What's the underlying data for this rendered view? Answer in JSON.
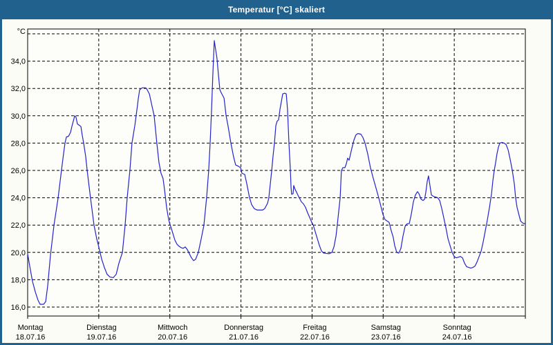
{
  "window": {
    "title": "Temperatur [°C] skaliert"
  },
  "colors": {
    "titlebar": "#20618e",
    "frame": "#20618e",
    "background": "#fbfcf5",
    "plot_background": "#fdfdfa",
    "grid": "#000000",
    "line": "#2222cc"
  },
  "chart_data": {
    "type": "line",
    "title": "Temperatur [°C] skaliert",
    "ylabel": "°C",
    "xlabel": "",
    "grid": "dashed",
    "legend": "none",
    "ylim": [
      15.3,
      36.4
    ],
    "x_range_hours": [
      0,
      168
    ],
    "y_axis": {
      "unit": "°C",
      "tick_labels": [
        "34,0",
        "32,0",
        "30,0",
        "28,0",
        "26,0",
        "24,0",
        "22,0",
        "20,0",
        "18,0",
        "16,0"
      ],
      "tick_values": [
        34,
        32,
        30,
        28,
        26,
        24,
        22,
        20,
        18,
        16
      ],
      "grid_values": [
        16,
        18,
        20,
        22,
        24,
        26,
        28,
        30,
        32,
        34,
        36
      ]
    },
    "x_axis": {
      "days": [
        {
          "name": "Montag",
          "date": "18.07.16"
        },
        {
          "name": "Dienstag",
          "date": "19.07.16"
        },
        {
          "name": "Mittwoch",
          "date": "20.07.16"
        },
        {
          "name": "Donnerstag",
          "date": "21.07.16"
        },
        {
          "name": "Freitag",
          "date": "22.07.16"
        },
        {
          "name": "Samstag",
          "date": "23.07.16"
        },
        {
          "name": "Sonntag",
          "date": "24.07.16"
        }
      ]
    },
    "series": [
      {
        "name": "Temperatur",
        "color": "#2222cc",
        "points_format": [
          "hours_since_monday_00",
          "temp_celsius"
        ],
        "points": [
          [
            0.0,
            19.9
          ],
          [
            0.7,
            19.0
          ],
          [
            1.6,
            17.9
          ],
          [
            2.6,
            17.1
          ],
          [
            3.5,
            16.5
          ],
          [
            4.2,
            16.2
          ],
          [
            5.4,
            16.2
          ],
          [
            6.1,
            16.4
          ],
          [
            6.8,
            17.6
          ],
          [
            7.7,
            19.8
          ],
          [
            8.9,
            22.0
          ],
          [
            10.3,
            24.0
          ],
          [
            11.4,
            26.0
          ],
          [
            12.1,
            27.2
          ],
          [
            12.6,
            28.0
          ],
          [
            13.1,
            28.45
          ],
          [
            13.8,
            28.5
          ],
          [
            14.5,
            28.8
          ],
          [
            14.9,
            29.2
          ],
          [
            15.4,
            29.6
          ],
          [
            15.9,
            30.0
          ],
          [
            16.3,
            29.9
          ],
          [
            16.8,
            29.4
          ],
          [
            17.5,
            29.3
          ],
          [
            18.0,
            29.2
          ],
          [
            18.4,
            28.6
          ],
          [
            18.9,
            28.0
          ],
          [
            19.6,
            27.0
          ],
          [
            20.1,
            26.0
          ],
          [
            21.2,
            24.0
          ],
          [
            22.4,
            22.0
          ],
          [
            23.3,
            21.0
          ],
          [
            24.0,
            20.4
          ],
          [
            25.0,
            19.5
          ],
          [
            25.9,
            18.9
          ],
          [
            26.8,
            18.4
          ],
          [
            27.8,
            18.2
          ],
          [
            28.9,
            18.15
          ],
          [
            29.9,
            18.4
          ],
          [
            30.8,
            19.2
          ],
          [
            32.0,
            20.0
          ],
          [
            32.9,
            22.0
          ],
          [
            33.6,
            24.0
          ],
          [
            34.5,
            26.0
          ],
          [
            35.2,
            28.0
          ],
          [
            36.2,
            29.3
          ],
          [
            36.6,
            30.0
          ],
          [
            37.1,
            30.8
          ],
          [
            37.3,
            31.2
          ],
          [
            37.8,
            31.9
          ],
          [
            38.7,
            32.05
          ],
          [
            39.7,
            32.05
          ],
          [
            40.1,
            32.0
          ],
          [
            40.6,
            31.8
          ],
          [
            41.1,
            31.6
          ],
          [
            41.8,
            30.9
          ],
          [
            42.7,
            30.0
          ],
          [
            43.6,
            28.0
          ],
          [
            44.3,
            26.6
          ],
          [
            45.0,
            25.8
          ],
          [
            45.7,
            25.4
          ],
          [
            46.2,
            24.6
          ],
          [
            46.9,
            23.3
          ],
          [
            47.6,
            22.4
          ],
          [
            48.1,
            22.0
          ],
          [
            48.3,
            21.9
          ],
          [
            49.0,
            21.4
          ],
          [
            49.7,
            20.9
          ],
          [
            50.4,
            20.6
          ],
          [
            51.1,
            20.45
          ],
          [
            51.8,
            20.35
          ],
          [
            52.5,
            20.3
          ],
          [
            53.2,
            20.4
          ],
          [
            53.9,
            20.2
          ],
          [
            54.6,
            19.9
          ],
          [
            55.3,
            19.6
          ],
          [
            56.0,
            19.4
          ],
          [
            56.7,
            19.5
          ],
          [
            57.6,
            20.0
          ],
          [
            58.6,
            21.0
          ],
          [
            59.5,
            22.0
          ],
          [
            60.4,
            24.0
          ],
          [
            61.1,
            26.0
          ],
          [
            61.6,
            28.0
          ],
          [
            62.1,
            30.5
          ],
          [
            62.5,
            33.0
          ],
          [
            63.0,
            35.5
          ],
          [
            63.5,
            34.8
          ],
          [
            63.9,
            34.2
          ],
          [
            64.4,
            33.0
          ],
          [
            64.9,
            31.9
          ],
          [
            65.3,
            31.7
          ],
          [
            65.8,
            31.5
          ],
          [
            66.3,
            31.3
          ],
          [
            67.0,
            30.0
          ],
          [
            67.7,
            29.2
          ],
          [
            68.6,
            28.0
          ],
          [
            69.5,
            27.0
          ],
          [
            70.2,
            26.4
          ],
          [
            71.2,
            26.3
          ],
          [
            71.9,
            26.2
          ],
          [
            72.3,
            25.8
          ],
          [
            73.3,
            25.7
          ],
          [
            74.0,
            25.0
          ],
          [
            74.9,
            24.0
          ],
          [
            75.6,
            23.5
          ],
          [
            76.5,
            23.2
          ],
          [
            77.5,
            23.1
          ],
          [
            79.3,
            23.1
          ],
          [
            80.0,
            23.2
          ],
          [
            81.0,
            23.6
          ],
          [
            81.4,
            24.0
          ],
          [
            81.9,
            25.0
          ],
          [
            82.4,
            26.0
          ],
          [
            82.8,
            27.0
          ],
          [
            83.3,
            28.0
          ],
          [
            83.8,
            29.3
          ],
          [
            84.2,
            29.6
          ],
          [
            84.7,
            29.7
          ],
          [
            85.2,
            30.5
          ],
          [
            85.6,
            31.0
          ],
          [
            86.1,
            31.6
          ],
          [
            86.8,
            31.65
          ],
          [
            87.3,
            31.6
          ],
          [
            87.7,
            30.5
          ],
          [
            88.2,
            28.0
          ],
          [
            88.7,
            26.0
          ],
          [
            88.9,
            24.8
          ],
          [
            89.1,
            24.25
          ],
          [
            89.6,
            24.3
          ],
          [
            89.8,
            24.9
          ],
          [
            90.3,
            24.6
          ],
          [
            90.8,
            24.4
          ],
          [
            91.2,
            24.2
          ],
          [
            91.7,
            24.0
          ],
          [
            92.4,
            23.7
          ],
          [
            93.1,
            23.55
          ],
          [
            93.8,
            23.3
          ],
          [
            94.5,
            22.9
          ],
          [
            95.2,
            22.55
          ],
          [
            95.9,
            22.2
          ],
          [
            96.4,
            22.0
          ],
          [
            97.1,
            21.5
          ],
          [
            97.8,
            21.0
          ],
          [
            98.5,
            20.5
          ],
          [
            99.2,
            20.1
          ],
          [
            99.9,
            19.95
          ],
          [
            101.7,
            19.9
          ],
          [
            102.7,
            20.0
          ],
          [
            103.4,
            20.4
          ],
          [
            104.1,
            21.2
          ],
          [
            104.5,
            22.0
          ],
          [
            105.0,
            23.0
          ],
          [
            105.5,
            24.0
          ],
          [
            105.7,
            25.0
          ],
          [
            105.9,
            26.0
          ],
          [
            106.4,
            26.2
          ],
          [
            107.1,
            26.2
          ],
          [
            107.6,
            26.5
          ],
          [
            108.0,
            26.9
          ],
          [
            108.5,
            26.75
          ],
          [
            109.0,
            27.2
          ],
          [
            109.4,
            27.6
          ],
          [
            110.1,
            28.2
          ],
          [
            110.8,
            28.6
          ],
          [
            111.5,
            28.7
          ],
          [
            112.5,
            28.65
          ],
          [
            113.2,
            28.4
          ],
          [
            113.9,
            28.0
          ],
          [
            114.8,
            27.2
          ],
          [
            115.7,
            26.2
          ],
          [
            116.7,
            25.4
          ],
          [
            117.6,
            24.7
          ],
          [
            118.5,
            24.0
          ],
          [
            119.2,
            23.4
          ],
          [
            119.9,
            22.8
          ],
          [
            120.6,
            22.4
          ],
          [
            121.3,
            22.3
          ],
          [
            122.0,
            22.2
          ],
          [
            122.7,
            21.6
          ],
          [
            123.4,
            21.1
          ],
          [
            123.9,
            20.5
          ],
          [
            124.6,
            20.0
          ],
          [
            125.3,
            19.95
          ],
          [
            126.0,
            20.3
          ],
          [
            126.7,
            21.2
          ],
          [
            127.4,
            21.9
          ],
          [
            128.1,
            22.1
          ],
          [
            128.8,
            22.1
          ],
          [
            129.5,
            22.8
          ],
          [
            130.2,
            23.7
          ],
          [
            130.9,
            24.2
          ],
          [
            131.6,
            24.45
          ],
          [
            132.1,
            24.3
          ],
          [
            132.8,
            23.9
          ],
          [
            133.5,
            23.8
          ],
          [
            134.0,
            23.9
          ],
          [
            134.4,
            24.4
          ],
          [
            134.9,
            25.2
          ],
          [
            135.3,
            25.6
          ],
          [
            135.8,
            24.9
          ],
          [
            136.3,
            24.2
          ],
          [
            137.0,
            24.1
          ],
          [
            137.7,
            24.05
          ],
          [
            138.4,
            24.0
          ],
          [
            139.1,
            23.8
          ],
          [
            139.8,
            23.2
          ],
          [
            140.5,
            22.5
          ],
          [
            141.2,
            21.8
          ],
          [
            141.9,
            21.0
          ],
          [
            142.6,
            20.5
          ],
          [
            143.3,
            20.0
          ],
          [
            144.0,
            19.7
          ],
          [
            144.7,
            19.6
          ],
          [
            145.4,
            19.65
          ],
          [
            146.1,
            19.7
          ],
          [
            146.8,
            19.6
          ],
          [
            147.5,
            19.2
          ],
          [
            148.2,
            18.95
          ],
          [
            148.9,
            18.9
          ],
          [
            149.6,
            18.85
          ],
          [
            150.3,
            18.9
          ],
          [
            151.0,
            19.0
          ],
          [
            151.7,
            19.3
          ],
          [
            152.4,
            19.7
          ],
          [
            153.1,
            20.1
          ],
          [
            153.8,
            20.8
          ],
          [
            154.5,
            21.6
          ],
          [
            155.2,
            22.4
          ],
          [
            155.9,
            23.3
          ],
          [
            156.6,
            24.3
          ],
          [
            157.0,
            25.2
          ],
          [
            157.5,
            26.0
          ],
          [
            158.0,
            26.6
          ],
          [
            158.4,
            27.2
          ],
          [
            158.9,
            27.7
          ],
          [
            159.4,
            28.0
          ],
          [
            160.1,
            28.05
          ],
          [
            160.8,
            28.0
          ],
          [
            161.5,
            27.9
          ],
          [
            162.2,
            27.5
          ],
          [
            162.9,
            26.8
          ],
          [
            163.6,
            26.0
          ],
          [
            164.3,
            25.0
          ],
          [
            164.7,
            24.0
          ],
          [
            165.2,
            23.3
          ],
          [
            165.9,
            22.7
          ],
          [
            166.4,
            22.3
          ],
          [
            167.1,
            22.15
          ],
          [
            167.8,
            22.1
          ],
          [
            168.0,
            22.05
          ]
        ]
      }
    ]
  }
}
